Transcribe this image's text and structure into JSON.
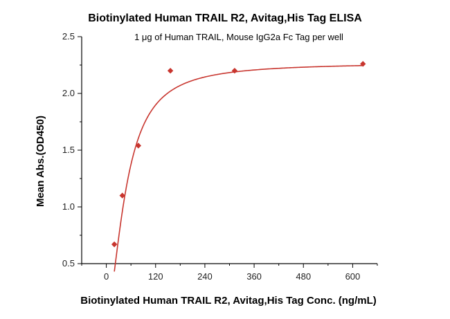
{
  "chart_data": {
    "type": "scatter",
    "title": "Biotinylated Human TRAIL R2, Avitag,His Tag ELISA",
    "subtitle": "1 μg of Human TRAIL, Mouse IgG2a Fc Tag per well",
    "xlabel": "Biotinylated Human TRAIL R2, Avitag,His Tag Conc. (ng/mL)",
    "ylabel": "Mean Abs.(OD450)",
    "xlim": [
      -60,
      660
    ],
    "ylim": [
      0.5,
      2.5
    ],
    "x_ticks": [
      0,
      120,
      240,
      360,
      480,
      600
    ],
    "x_tick_labels": [
      "0",
      "120",
      "240",
      "360",
      "480",
      "600"
    ],
    "y_ticks": [
      0.5,
      1.0,
      1.5,
      2.0,
      2.5
    ],
    "y_tick_labels": [
      "0.5",
      "1.0",
      "1.5",
      "2.0",
      "2.5"
    ],
    "grid": false,
    "legend": "none",
    "color": "#c8352e",
    "series": [
      {
        "x": [
          19.5,
          39,
          78,
          156,
          312.5,
          625
        ],
        "y": [
          0.67,
          1.1,
          1.54,
          2.2,
          2.2,
          2.26
        ],
        "fit": "4-parameter logistic curve"
      }
    ]
  }
}
